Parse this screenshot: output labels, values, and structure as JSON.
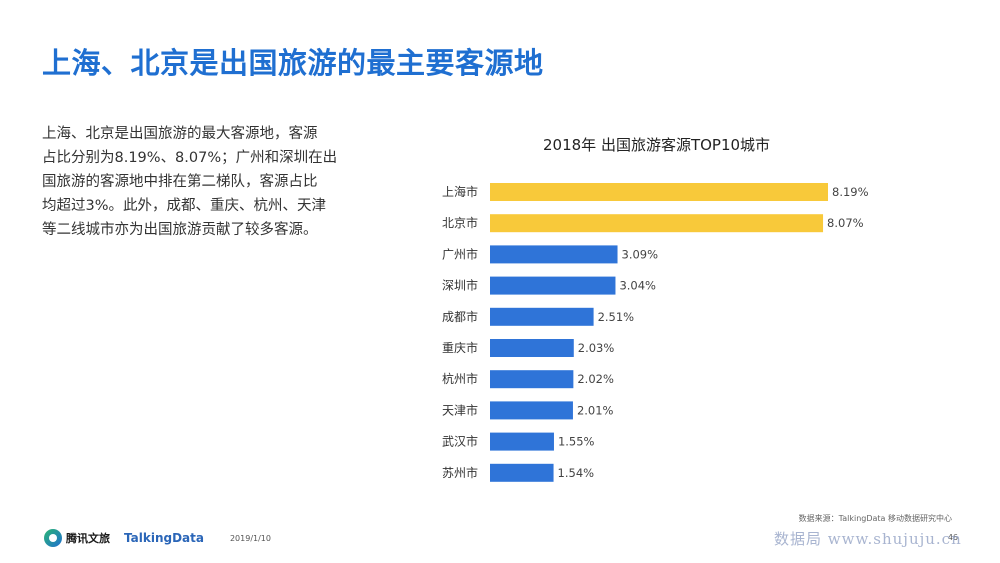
{
  "headline": "上海、北京是出国旅游的最主要客源地",
  "description": "上海、北京是出国旅游的最大客源地，客源\n占比分别为8.19%、8.07%；广州和深圳在出\n国旅游的客源地中排在第二梯队，客源占比\n均超过3%。此外，成都、重庆、杭州、天津\n等二线城市亦为出国旅游贡献了较多客源。",
  "chart_data": {
    "type": "bar",
    "orientation": "horizontal",
    "title": "2018年 出国旅游客源TOP10城市",
    "categories": [
      "上海市",
      "北京市",
      "广州市",
      "深圳市",
      "成都市",
      "重庆市",
      "杭州市",
      "天津市",
      "武汉市",
      "苏州市"
    ],
    "values": [
      8.19,
      8.07,
      3.09,
      3.04,
      2.51,
      2.03,
      2.02,
      2.01,
      1.55,
      1.54
    ],
    "value_labels": [
      "8.19%",
      "8.07%",
      "3.09%",
      "3.04%",
      "2.51%",
      "2.03%",
      "2.02%",
      "2.01%",
      "1.55%",
      "1.54%"
    ],
    "unit": "%",
    "xlim": [
      0,
      8.19
    ],
    "grid": false,
    "colors": {
      "highlight": "#f8c93a",
      "default": "#2f74d8"
    },
    "highlight_count": 2
  },
  "source": "数据来源：TalkingData 移动数据研究中心",
  "footer": {
    "logo_tencent": "腾讯文旅",
    "logo_talkingdata": "TalkingData",
    "date": "2019/1/10",
    "page": "46"
  },
  "watermark": "数据局 www.shujuju.cn"
}
